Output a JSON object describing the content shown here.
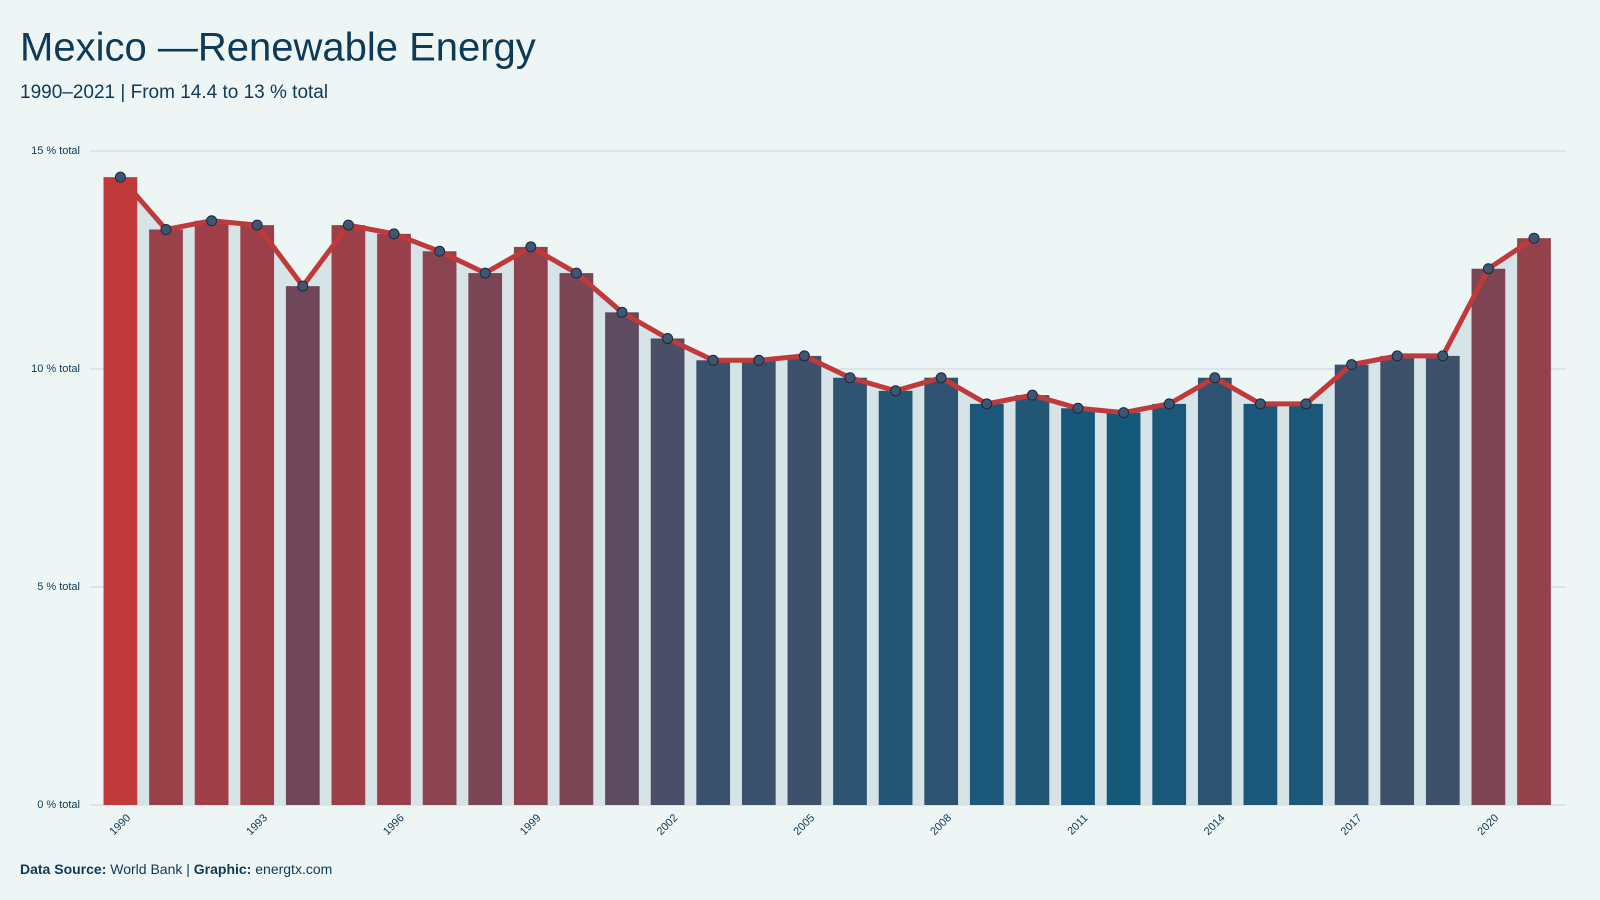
{
  "chart_data": {
    "type": "bar-line",
    "title": "Mexico —Renewable Energy",
    "subtitle": "1990–2021 | From 14.4 to 13 % total",
    "categories": [
      "1990",
      null,
      null,
      "1993",
      null,
      null,
      "1996",
      null,
      null,
      "1999",
      null,
      null,
      "2002",
      null,
      null,
      "2005",
      null,
      null,
      "2008",
      null,
      null,
      "2011",
      null,
      null,
      "2014",
      null,
      null,
      "2017",
      null,
      null,
      "2020",
      null
    ],
    "values": [
      14.4,
      13.2,
      13.4,
      13.3,
      11.9,
      13.3,
      13.1,
      12.7,
      12.2,
      12.8,
      12.2,
      11.3,
      10.7,
      10.2,
      10.2,
      10.3,
      9.8,
      9.5,
      9.8,
      9.2,
      9.4,
      9.1,
      9.0,
      9.2,
      9.8,
      9.2,
      9.2,
      10.1,
      10.3,
      10.3,
      12.3,
      13.0
    ],
    "color_scale": [
      "#14587a",
      "#c0393b"
    ],
    "line_color": "#c0393b",
    "point_color": "#3d5674",
    "area_color": "#d6e4e7",
    "ylim": [
      0,
      15
    ],
    "yticks": [
      {
        "value": 0,
        "label": "0 % total"
      },
      {
        "value": 5,
        "label": "5 % total"
      },
      {
        "value": 10,
        "label": "10 % total"
      },
      {
        "value": 15,
        "label": "15 % total"
      }
    ],
    "grid": true,
    "caption": [
      "Data Source:",
      "World Bank |",
      "Graphic:",
      "energtx.com"
    ]
  }
}
